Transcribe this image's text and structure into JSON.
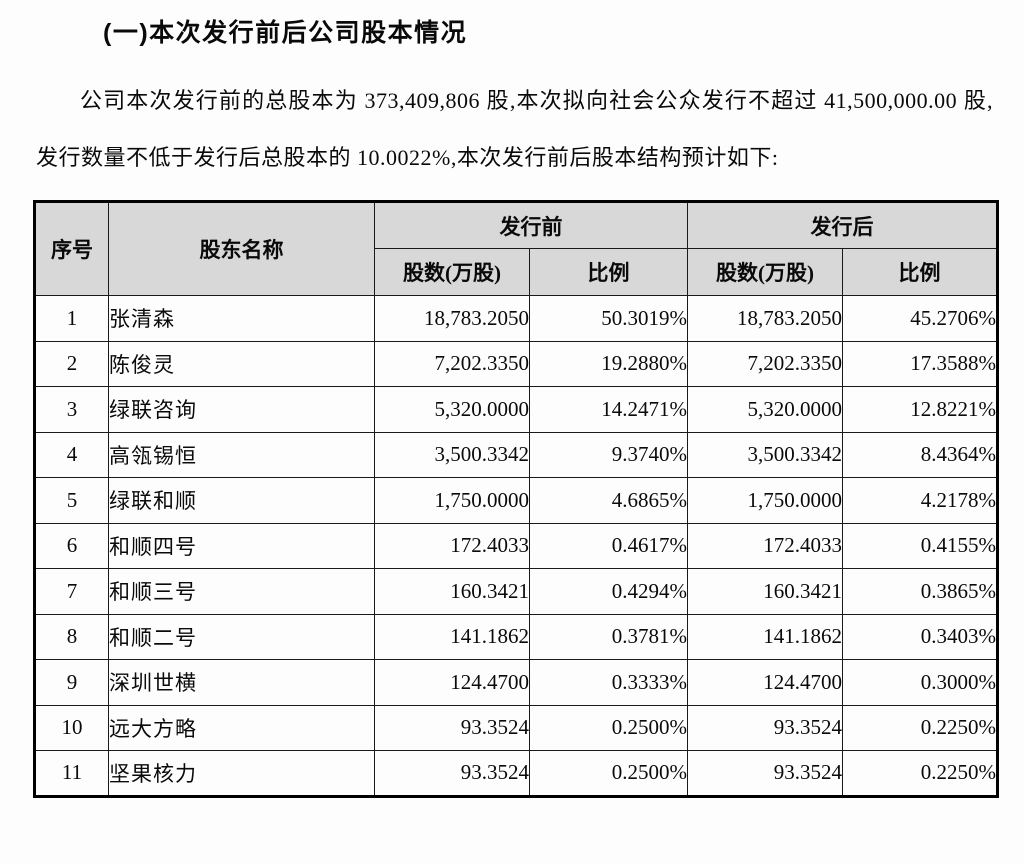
{
  "page": {
    "heading": "(一)本次发行前后公司股本情况",
    "paragraph": "公司本次发行前的总股本为 373,409,806 股,本次拟向社会公众发行不超过 41,500,000.00 股,发行数量不低于发行后总股本的 10.0022%,本次发行前后股本结构预计如下:"
  },
  "colors": {
    "header_bg": "#d8d8d8",
    "border": "#000000",
    "text": "#0a0a0a"
  },
  "table": {
    "headers": {
      "index": "序号",
      "shareholder": "股东名称",
      "pre_issue": "发行前",
      "post_issue": "发行后",
      "shares": "股数(万股)",
      "ratio": "比例"
    },
    "rows": [
      {
        "index": "1",
        "name": "张清森",
        "pre_shares": "18,783.2050",
        "pre_ratio": "50.3019%",
        "post_shares": "18,783.2050",
        "post_ratio": "45.2706%"
      },
      {
        "index": "2",
        "name": "陈俊灵",
        "pre_shares": "7,202.3350",
        "pre_ratio": "19.2880%",
        "post_shares": "7,202.3350",
        "post_ratio": "17.3588%"
      },
      {
        "index": "3",
        "name": "绿联咨询",
        "pre_shares": "5,320.0000",
        "pre_ratio": "14.2471%",
        "post_shares": "5,320.0000",
        "post_ratio": "12.8221%"
      },
      {
        "index": "4",
        "name": "高瓴锡恒",
        "pre_shares": "3,500.3342",
        "pre_ratio": "9.3740%",
        "post_shares": "3,500.3342",
        "post_ratio": "8.4364%"
      },
      {
        "index": "5",
        "name": "绿联和顺",
        "pre_shares": "1,750.0000",
        "pre_ratio": "4.6865%",
        "post_shares": "1,750.0000",
        "post_ratio": "4.2178%"
      },
      {
        "index": "6",
        "name": "和顺四号",
        "pre_shares": "172.4033",
        "pre_ratio": "0.4617%",
        "post_shares": "172.4033",
        "post_ratio": "0.4155%"
      },
      {
        "index": "7",
        "name": "和顺三号",
        "pre_shares": "160.3421",
        "pre_ratio": "0.4294%",
        "post_shares": "160.3421",
        "post_ratio": "0.3865%"
      },
      {
        "index": "8",
        "name": "和顺二号",
        "pre_shares": "141.1862",
        "pre_ratio": "0.3781%",
        "post_shares": "141.1862",
        "post_ratio": "0.3403%"
      },
      {
        "index": "9",
        "name": "深圳世横",
        "pre_shares": "124.4700",
        "pre_ratio": "0.3333%",
        "post_shares": "124.4700",
        "post_ratio": "0.3000%"
      },
      {
        "index": "10",
        "name": "远大方略",
        "pre_shares": "93.3524",
        "pre_ratio": "0.2500%",
        "post_shares": "93.3524",
        "post_ratio": "0.2250%"
      },
      {
        "index": "11",
        "name": "坚果核力",
        "pre_shares": "93.3524",
        "pre_ratio": "0.2500%",
        "post_shares": "93.3524",
        "post_ratio": "0.2250%"
      }
    ]
  }
}
